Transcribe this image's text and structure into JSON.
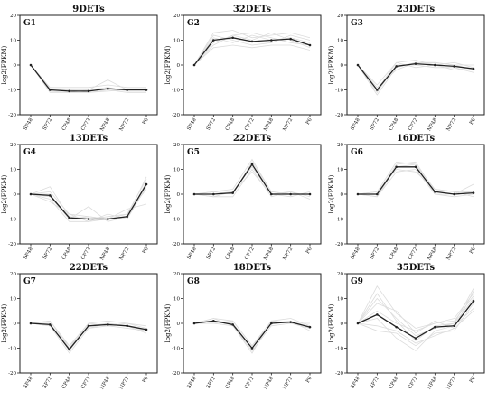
{
  "chart_data": {
    "type": "line",
    "x_categories": [
      "SP48",
      "SP72",
      "CP48",
      "CP72",
      "NP48",
      "NP72",
      "P6"
    ],
    "ylabel": "log2(FPKM)",
    "ylim": [
      -20,
      20
    ],
    "yticks": [
      -20,
      -10,
      0,
      10,
      20
    ],
    "background_color": "#dcdcdc",
    "mean_color": "#222222",
    "panels": [
      {
        "group": "G1",
        "title": "9DETs",
        "mean": [
          0,
          -10,
          -10.5,
          -10.5,
          -9.5,
          -10,
          -10
        ],
        "background": [
          [
            0,
            -9,
            -9,
            -9,
            -8,
            -9,
            -9
          ],
          [
            0,
            -11,
            -11,
            -11,
            -10,
            -11,
            -11
          ],
          [
            0,
            -10,
            -10,
            -10,
            -6,
            -10,
            -10
          ],
          [
            0,
            -9.5,
            -10,
            -11,
            -10.5,
            -10,
            -9.5
          ],
          [
            0,
            -10.5,
            -11,
            -10,
            -9,
            -10.5,
            -10.5
          ]
        ]
      },
      {
        "group": "G2",
        "title": "32DETs",
        "mean": [
          0,
          10,
          11,
          9.5,
          10,
          10.5,
          8
        ],
        "background": [
          [
            0,
            13,
            14,
            11,
            12,
            13,
            11
          ],
          [
            0,
            7,
            8,
            7,
            8,
            8,
            6
          ],
          [
            0,
            11,
            9,
            12,
            10,
            11,
            9
          ],
          [
            0,
            9,
            12,
            10,
            13,
            10,
            7
          ],
          [
            0,
            12,
            10,
            8,
            9,
            12,
            10
          ],
          [
            0,
            8,
            12,
            13,
            11,
            9,
            8
          ]
        ]
      },
      {
        "group": "G3",
        "title": "23DETs",
        "mean": [
          0,
          -10,
          -0.5,
          0.5,
          0,
          -0.5,
          -1.5
        ],
        "background": [
          [
            0,
            -12,
            -1,
            1,
            1,
            0,
            -2
          ],
          [
            0,
            -8,
            1,
            2,
            0,
            1,
            -1
          ],
          [
            0,
            -11,
            0,
            0,
            -1,
            -1,
            -3
          ],
          [
            0,
            -9,
            -2,
            1,
            1,
            0,
            0
          ],
          [
            0,
            -10,
            1,
            -1,
            0,
            -2,
            -1
          ]
        ]
      },
      {
        "group": "G4",
        "title": "13DETs",
        "mean": [
          0,
          -0.5,
          -9.5,
          -10,
          -10,
          -9,
          4
        ],
        "background": [
          [
            0,
            1,
            -8,
            -9,
            -10,
            -8,
            6
          ],
          [
            0,
            -2,
            -11,
            -11,
            -10,
            -10,
            3
          ],
          [
            0,
            3,
            -9,
            -10,
            -9,
            -8,
            2
          ],
          [
            0,
            -1,
            -10,
            -5,
            -11,
            -9,
            7
          ],
          [
            0,
            0,
            -10,
            -9,
            -10,
            -6,
            -4
          ],
          [
            0,
            -3,
            -8,
            -11,
            -8,
            -10,
            5
          ]
        ]
      },
      {
        "group": "G5",
        "title": "22DETs",
        "mean": [
          0,
          0,
          0.5,
          12,
          0,
          0,
          0
        ],
        "background": [
          [
            0,
            1,
            2,
            14,
            1,
            0,
            0
          ],
          [
            0,
            -1,
            -1,
            10,
            -1,
            1,
            -1
          ],
          [
            0,
            0,
            1,
            11,
            0,
            -1,
            1
          ],
          [
            0,
            1,
            0,
            13,
            1,
            0,
            0
          ],
          [
            0,
            -1,
            1,
            9,
            0,
            1,
            -2
          ]
        ]
      },
      {
        "group": "G6",
        "title": "16DETs",
        "mean": [
          0,
          0,
          11,
          11,
          1,
          0,
          0.5
        ],
        "background": [
          [
            0,
            1,
            13,
            12,
            2,
            1,
            1
          ],
          [
            0,
            -1,
            9,
            10,
            0,
            -1,
            0
          ],
          [
            0,
            0,
            12,
            13,
            1,
            0,
            4
          ],
          [
            0,
            1,
            10,
            9,
            2,
            1,
            -1
          ],
          [
            0,
            -1,
            11,
            12,
            0,
            0,
            1
          ]
        ]
      },
      {
        "group": "G7",
        "title": "22DETs",
        "mean": [
          0,
          -0.5,
          -10.5,
          -1,
          -0.5,
          -1,
          -2.5
        ],
        "background": [
          [
            0,
            1,
            -9,
            0,
            1,
            0,
            -2
          ],
          [
            0,
            -1,
            -12,
            -2,
            -1,
            -2,
            -3
          ],
          [
            0,
            0,
            -11,
            -1,
            0,
            -1,
            -4
          ],
          [
            0,
            1,
            -10,
            0,
            -1,
            0,
            -1
          ],
          [
            0,
            -1,
            -9,
            -2,
            0,
            -1,
            -3
          ]
        ]
      },
      {
        "group": "G8",
        "title": "18DETs",
        "mean": [
          0,
          1,
          -0.5,
          -10,
          0,
          0.5,
          -1.5
        ],
        "background": [
          [
            0,
            2,
            1,
            -9,
            1,
            2,
            -1
          ],
          [
            0,
            0,
            -1,
            -11,
            -1,
            0,
            -2
          ],
          [
            0,
            1,
            0,
            -10,
            0,
            1,
            -3
          ],
          [
            0,
            2,
            -1,
            -12,
            1,
            0,
            0
          ],
          [
            0,
            0,
            1,
            -9,
            0,
            1,
            -2
          ]
        ]
      },
      {
        "group": "G9",
        "title": "35DETs",
        "mean": [
          0,
          3.5,
          -1.5,
          -6,
          -1.5,
          -1,
          9
        ],
        "background": [
          [
            0,
            15,
            4,
            -2,
            0,
            2,
            12
          ],
          [
            0,
            10,
            2,
            -5,
            -2,
            0,
            10
          ],
          [
            0,
            -3,
            -4,
            -9,
            -4,
            -3,
            8
          ],
          [
            0,
            8,
            5,
            -4,
            1,
            -2,
            13
          ],
          [
            0,
            2,
            -6,
            -11,
            -3,
            -1,
            6
          ],
          [
            0,
            12,
            1,
            -7,
            -1,
            0,
            14
          ],
          [
            0,
            -1,
            -3,
            -8,
            -5,
            -2,
            5
          ],
          [
            0,
            5,
            0,
            -3,
            0,
            1,
            11
          ]
        ]
      }
    ]
  }
}
